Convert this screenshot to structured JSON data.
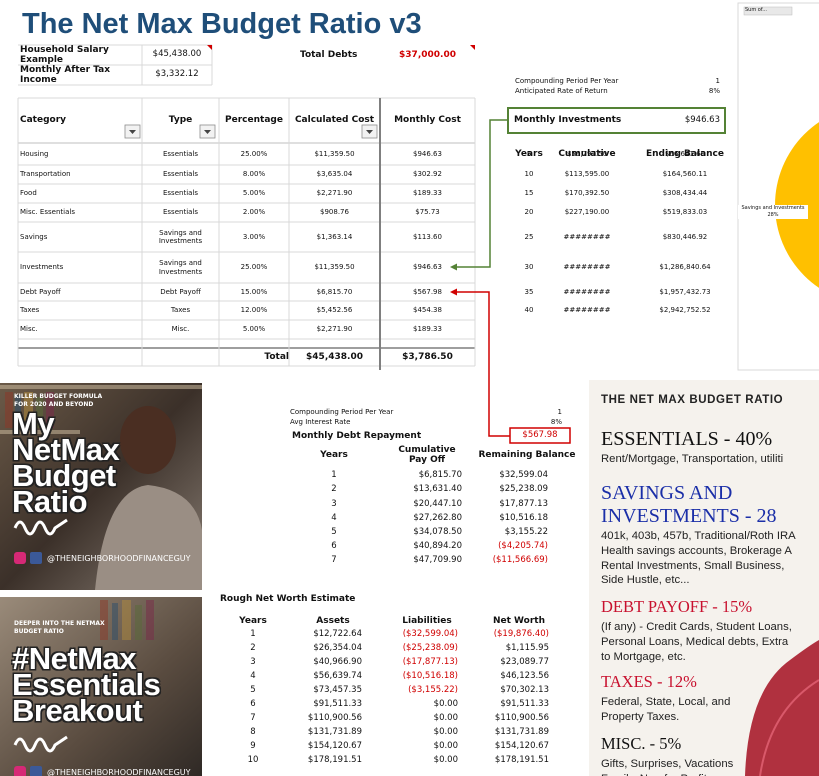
{
  "title": "The Net Max Budget Ratio v3",
  "summary": {
    "salary_label": "Household Salary Example",
    "salary": "$45,438.00",
    "income_label": "Monthly After Tax Income",
    "income": "$3,332.12",
    "debts_label": "Total Debts",
    "debts": "$37,000.00"
  },
  "budget_table": {
    "headers": [
      "Category",
      "Type",
      "Percentage",
      "Calculated Cost",
      "Monthly Cost"
    ],
    "rows": [
      [
        "Housing",
        "Essentials",
        "25.00%",
        "$11,359.50",
        "$946.63"
      ],
      [
        "Transportation",
        "Essentials",
        "8.00%",
        "$3,635.04",
        "$302.92"
      ],
      [
        "Food",
        "Essentials",
        "5.00%",
        "$2,271.90",
        "$189.33"
      ],
      [
        "Misc. Essentials",
        "Essentials",
        "2.00%",
        "$908.76",
        "$75.73"
      ],
      [
        "Savings",
        "Savings and Investments",
        "3.00%",
        "$1,363.14",
        "$113.60"
      ],
      [
        "Investments",
        "Savings and Investments",
        "25.00%",
        "$11,359.50",
        "$946.63"
      ],
      [
        "Debt Payoff",
        "Debt Payoff",
        "15.00%",
        "$6,815.70",
        "$567.98"
      ],
      [
        "Taxes",
        "Taxes",
        "12.00%",
        "$5,452.56",
        "$454.38"
      ],
      [
        "Misc.",
        "Misc.",
        "5.00%",
        "$2,271.90",
        "$189.33"
      ]
    ],
    "total": {
      "label": "Total",
      "calculated": "$45,438.00",
      "monthly": "$3,786.50"
    }
  },
  "investments": {
    "period_label": "Compounding Period Per Year",
    "period": "1",
    "rate_label": "Anticipated Rate of Return",
    "rate": "8%",
    "monthly_label": "Monthly Investments",
    "monthly": "$946.63",
    "headers": [
      "Years",
      "Cumulative",
      "Ending Balance"
    ],
    "rows": [
      [
        5,
        "$56,797.50",
        "$66,641.65"
      ],
      [
        10,
        "$113,595.00",
        "$164,560.11"
      ],
      [
        15,
        "$170,392.50",
        "$308,434.44"
      ],
      [
        20,
        "$227,190.00",
        "$519,833.03"
      ],
      [
        25,
        "########",
        "$830,446.92"
      ],
      [
        30,
        "########",
        "$1,286,840.64"
      ],
      [
        35,
        "########",
        "$1,957,432.73"
      ],
      [
        40,
        "########",
        "$2,942,752.52"
      ]
    ]
  },
  "chart_preview": {
    "field_button": "Sum of...",
    "slice_label": "Savings and Investments",
    "slice_percent": "28%"
  },
  "debt": {
    "period_label": "Compounding Period Per Year",
    "period": "1",
    "rate_label": "Avg Interest Rate",
    "rate": "8%",
    "monthly_label": "Monthly Debt Repayment",
    "monthly": "$567.98",
    "headers": [
      "Years",
      "Cumulative Pay Off",
      "Remaining Balance"
    ],
    "rows": [
      [
        1,
        "$6,815.70",
        "$32,599.04"
      ],
      [
        2,
        "$13,631.40",
        "$25,238.09"
      ],
      [
        3,
        "$20,447.10",
        "$17,877.13"
      ],
      [
        4,
        "$27,262.80",
        "$10,516.18"
      ],
      [
        5,
        "$34,078.50",
        "$3,155.22"
      ],
      [
        6,
        "$40,894.20",
        "($4,205.74)"
      ],
      [
        7,
        "$47,709.90",
        "($11,566.69)"
      ]
    ]
  },
  "net_worth": {
    "title": "Rough Net Worth Estimate",
    "headers": [
      "Years",
      "Assets",
      "Liabilities",
      "Net Worth"
    ],
    "rows": [
      [
        1,
        "$12,722.64",
        "($32,599.04)",
        "($19,876.40)"
      ],
      [
        2,
        "$26,354.04",
        "($25,238.09)",
        "$1,115.95"
      ],
      [
        3,
        "$40,966.90",
        "($17,877.13)",
        "$23,089.77"
      ],
      [
        4,
        "$56,639.74",
        "($10,516.18)",
        "$46,123.56"
      ],
      [
        5,
        "$73,457.35",
        "($3,155.22)",
        "$70,302.13"
      ],
      [
        6,
        "$91,511.33",
        "$0.00",
        "$91,511.33"
      ],
      [
        7,
        "$110,900.56",
        "$0.00",
        "$110,900.56"
      ],
      [
        8,
        "$131,731.89",
        "$0.00",
        "$131,731.89"
      ],
      [
        9,
        "$154,120.67",
        "$0.00",
        "$154,120.67"
      ],
      [
        10,
        "$178,191.51",
        "$0.00",
        "$178,191.51"
      ]
    ]
  },
  "promo_1": {
    "kicker": "KILLER BUDGET FORMULA FOR 2020 AND BEYOND",
    "headline": [
      "My",
      "NetMax",
      "Budget",
      "Ratio"
    ],
    "handle": "@THENEIGHBORHOODFINANCEGUY"
  },
  "promo_2": {
    "kicker": "DEEPER INTO THE NETMAX BUDGET RATIO",
    "headline": [
      "#NetMax",
      "Essentials",
      "Breakout"
    ],
    "handle": "@THENEIGHBORHOODFINANCEGUY"
  },
  "ratio_panel": {
    "title": "THE NET MAX BUDGET RATIO",
    "sections": [
      {
        "heading": [
          "ESSENTIALS - 40%"
        ],
        "color": "#111111",
        "lines": [
          "Rent/Mortgage, Transportation, utiliti"
        ]
      },
      {
        "heading": [
          "SAVINGS AND",
          "INVESTMENTS - 28"
        ],
        "color": "#1b2fa8",
        "lines": [
          "401k, 403b, 457b, Traditional/Roth IRA",
          "Health savings accounts, Brokerage A",
          "Rental Investments, Small Business,",
          "Side Hustle, etc..."
        ]
      },
      {
        "heading": [
          "DEBT PAYOFF - 15%"
        ],
        "color": "#c8102e",
        "lines": [
          "(If any) - Credit Cards, Student Loans,",
          "Personal Loans, Medical debts, Extra",
          "to Mortgage, etc."
        ]
      },
      {
        "heading": [
          "TAXES - 12%"
        ],
        "color": "#c8102e",
        "lines": [
          "Federal, State, Local, and",
          "Property Taxes."
        ]
      },
      {
        "heading": [
          "MISC. - 5%"
        ],
        "color": "#111111",
        "lines": [
          "Gifts, Surprises, Vacations",
          "Family, Non-for Profit"
        ]
      }
    ]
  }
}
